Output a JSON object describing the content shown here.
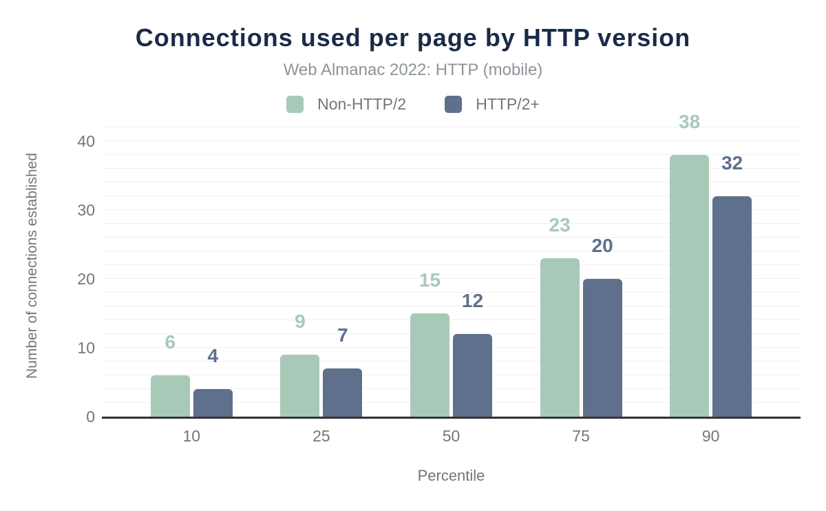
{
  "header": {
    "title": "Connections used per page by HTTP version",
    "subtitle": "Web Almanac 2022: HTTP (mobile)"
  },
  "legend": [
    {
      "label": "Non-HTTP/2",
      "color": "#a8c9b8"
    },
    {
      "label": "HTTP/2+",
      "color": "#5f708c"
    }
  ],
  "chart_data": {
    "type": "bar",
    "categories": [
      "10",
      "25",
      "50",
      "75",
      "90"
    ],
    "series": [
      {
        "name": "Non-HTTP/2",
        "color": "#a8c9b8",
        "values": [
          6,
          9,
          15,
          23,
          38
        ]
      },
      {
        "name": "HTTP/2+",
        "color": "#5f708c",
        "values": [
          4,
          7,
          12,
          20,
          32
        ]
      }
    ],
    "title": "Connections used per page by HTTP version",
    "subtitle": "Web Almanac 2022: HTTP (mobile)",
    "xlabel": "Percentile",
    "ylabel": "Number of connections established",
    "yticks": [
      0,
      10,
      20,
      30,
      40
    ],
    "ylim": [
      0,
      44
    ],
    "grid": true,
    "legend_position": "top",
    "value_labels": true
  },
  "colors": {
    "title": "#1a2b49",
    "subtitle": "#8e9499",
    "axis_text": "#757575",
    "gridline": "#f0f0f0",
    "axis_line": "#333333",
    "background": "#ffffff"
  }
}
